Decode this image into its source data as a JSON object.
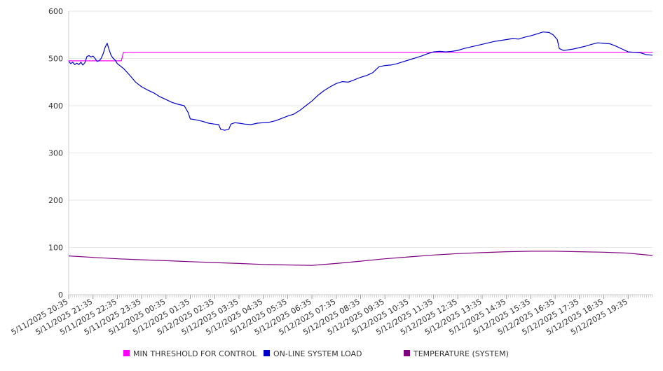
{
  "chart_data": {
    "type": "line",
    "title": "",
    "xlabel": "",
    "ylabel": "",
    "ylim": [
      0,
      600
    ],
    "yticks": [
      "0",
      "100",
      "200",
      "300",
      "400",
      "500",
      "600"
    ],
    "x_start": "5/11/2025 20:35",
    "x_end": "5/12/2025 20:35",
    "x_tick_labels": [
      "5/11/2025 20:35",
      "5/11/2025 21:35",
      "5/11/2025 22:35",
      "5/11/2025 23:35",
      "5/12/2025 00:35",
      "5/12/2025 01:35",
      "5/12/2025 02:35",
      "5/12/2025 03:35",
      "5/12/2025 04:35",
      "5/12/2025 05:35",
      "5/12/2025 06:35",
      "5/12/2025 07:35",
      "5/12/2025 08:35",
      "5/12/2025 09:35",
      "5/12/2025 10:35",
      "5/12/2025 11:35",
      "5/12/2025 12:35",
      "5/12/2025 13:35",
      "5/12/2025 14:35",
      "5/12/2025 15:35",
      "5/12/2025 16:35",
      "5/12/2025 17:35",
      "5/12/2025 18:35",
      "5/12/2025 19:35"
    ],
    "grid": true,
    "legend_position": "bottom",
    "series": [
      {
        "name": "MIN THRESHOLD FOR CONTROL",
        "color": "#ff00ff",
        "points": [
          [
            "5/11/2025 20:35",
            495
          ],
          [
            "5/11/2025 22:45",
            495
          ],
          [
            "5/11/2025 22:50",
            513
          ],
          [
            "5/12/2025 20:35",
            513
          ]
        ]
      },
      {
        "name": "ON-LINE SYSTEM LOAD",
        "color": "#0000cc",
        "points": [
          [
            "5/11/2025 20:35",
            494
          ],
          [
            "5/11/2025 20:40",
            489
          ],
          [
            "5/11/2025 20:45",
            492
          ],
          [
            "5/11/2025 20:50",
            487
          ],
          [
            "5/11/2025 20:55",
            490
          ],
          [
            "5/11/2025 21:00",
            487
          ],
          [
            "5/11/2025 21:05",
            492
          ],
          [
            "5/11/2025 21:10",
            486
          ],
          [
            "5/11/2025 21:15",
            491
          ],
          [
            "5/11/2025 21:20",
            504
          ],
          [
            "5/11/2025 21:25",
            506
          ],
          [
            "5/11/2025 21:30",
            503
          ],
          [
            "5/11/2025 21:35",
            505
          ],
          [
            "5/11/2025 21:40",
            500
          ],
          [
            "5/11/2025 21:45",
            494
          ],
          [
            "5/11/2025 21:50",
            495
          ],
          [
            "5/11/2025 21:55",
            500
          ],
          [
            "5/11/2025 22:00",
            510
          ],
          [
            "5/11/2025 22:05",
            524
          ],
          [
            "5/11/2025 22:10",
            532
          ],
          [
            "5/11/2025 22:15",
            518
          ],
          [
            "5/11/2025 22:20",
            506
          ],
          [
            "5/11/2025 22:25",
            500
          ],
          [
            "5/11/2025 22:30",
            496
          ],
          [
            "5/11/2025 22:35",
            489
          ],
          [
            "5/11/2025 22:50",
            479
          ],
          [
            "5/11/2025 23:05",
            465
          ],
          [
            "5/11/2025 23:20",
            450
          ],
          [
            "5/11/2025 23:35",
            440
          ],
          [
            "5/11/2025 23:50",
            433
          ],
          [
            "5/12/2025 00:05",
            427
          ],
          [
            "5/12/2025 00:20",
            419
          ],
          [
            "5/12/2025 00:35",
            413
          ],
          [
            "5/12/2025 00:50",
            407
          ],
          [
            "5/12/2025 01:05",
            403
          ],
          [
            "5/12/2025 01:20",
            400
          ],
          [
            "5/12/2025 01:30",
            385
          ],
          [
            "5/12/2025 01:35",
            372
          ],
          [
            "5/12/2025 01:50",
            370
          ],
          [
            "5/12/2025 02:05",
            367
          ],
          [
            "5/12/2025 02:20",
            363
          ],
          [
            "5/12/2025 02:35",
            361
          ],
          [
            "5/12/2025 02:45",
            360
          ],
          [
            "5/12/2025 02:50",
            350
          ],
          [
            "5/12/2025 03:00",
            348
          ],
          [
            "5/12/2025 03:10",
            350
          ],
          [
            "5/12/2025 03:15",
            361
          ],
          [
            "5/12/2025 03:25",
            364
          ],
          [
            "5/12/2025 03:35",
            363
          ],
          [
            "5/12/2025 03:50",
            361
          ],
          [
            "5/12/2025 04:05",
            360
          ],
          [
            "5/12/2025 04:20",
            363
          ],
          [
            "5/12/2025 04:35",
            364
          ],
          [
            "5/12/2025 04:50",
            365
          ],
          [
            "5/12/2025 05:05",
            368
          ],
          [
            "5/12/2025 05:20",
            373
          ],
          [
            "5/12/2025 05:35",
            378
          ],
          [
            "5/12/2025 05:50",
            382
          ],
          [
            "5/12/2025 06:05",
            390
          ],
          [
            "5/12/2025 06:20",
            400
          ],
          [
            "5/12/2025 06:35",
            410
          ],
          [
            "5/12/2025 06:50",
            422
          ],
          [
            "5/12/2025 07:05",
            432
          ],
          [
            "5/12/2025 07:20",
            440
          ],
          [
            "5/12/2025 07:35",
            447
          ],
          [
            "5/12/2025 07:50",
            451
          ],
          [
            "5/12/2025 08:05",
            450
          ],
          [
            "5/12/2025 08:20",
            455
          ],
          [
            "5/12/2025 08:35",
            460
          ],
          [
            "5/12/2025 08:50",
            464
          ],
          [
            "5/12/2025 09:05",
            470
          ],
          [
            "5/12/2025 09:20",
            482
          ],
          [
            "5/12/2025 09:35",
            485
          ],
          [
            "5/12/2025 09:50",
            486
          ],
          [
            "5/12/2025 10:05",
            489
          ],
          [
            "5/12/2025 10:20",
            493
          ],
          [
            "5/12/2025 10:35",
            497
          ],
          [
            "5/12/2025 10:50",
            501
          ],
          [
            "5/12/2025 11:05",
            505
          ],
          [
            "5/12/2025 11:20",
            510
          ],
          [
            "5/12/2025 11:35",
            514
          ],
          [
            "5/12/2025 11:50",
            515
          ],
          [
            "5/12/2025 12:05",
            514
          ],
          [
            "5/12/2025 12:20",
            515
          ],
          [
            "5/12/2025 12:35",
            517
          ],
          [
            "5/12/2025 12:50",
            521
          ],
          [
            "5/12/2025 13:05",
            524
          ],
          [
            "5/12/2025 13:20",
            527
          ],
          [
            "5/12/2025 13:35",
            530
          ],
          [
            "5/12/2025 13:50",
            533
          ],
          [
            "5/12/2025 14:05",
            536
          ],
          [
            "5/12/2025 14:20",
            538
          ],
          [
            "5/12/2025 14:35",
            540
          ],
          [
            "5/12/2025 14:50",
            542
          ],
          [
            "5/12/2025 15:05",
            541
          ],
          [
            "5/12/2025 15:20",
            545
          ],
          [
            "5/12/2025 15:35",
            548
          ],
          [
            "5/12/2025 15:50",
            552
          ],
          [
            "5/12/2025 16:05",
            556
          ],
          [
            "5/12/2025 16:20",
            555
          ],
          [
            "5/12/2025 16:30",
            550
          ],
          [
            "5/12/2025 16:40",
            540
          ],
          [
            "5/12/2025 16:45",
            521
          ],
          [
            "5/12/2025 16:55",
            517
          ],
          [
            "5/12/2025 17:05",
            518
          ],
          [
            "5/12/2025 17:20",
            520
          ],
          [
            "5/12/2025 17:35",
            523
          ],
          [
            "5/12/2025 17:50",
            526
          ],
          [
            "5/12/2025 18:05",
            530
          ],
          [
            "5/12/2025 18:20",
            533
          ],
          [
            "5/12/2025 18:35",
            532
          ],
          [
            "5/12/2025 18:50",
            531
          ],
          [
            "5/12/2025 19:05",
            526
          ],
          [
            "5/12/2025 19:20",
            520
          ],
          [
            "5/12/2025 19:35",
            514
          ],
          [
            "5/12/2025 19:50",
            513
          ],
          [
            "5/12/2025 20:05",
            512
          ],
          [
            "5/12/2025 20:20",
            508
          ],
          [
            "5/12/2025 20:35",
            507
          ]
        ]
      },
      {
        "name": "TEMPERATURE (SYSTEM)",
        "color": "#800080",
        "points": [
          [
            "5/11/2025 20:35",
            82
          ],
          [
            "5/11/2025 21:35",
            79
          ],
          [
            "5/11/2025 22:35",
            76
          ],
          [
            "5/11/2025 23:35",
            74
          ],
          [
            "5/12/2025 00:35",
            72
          ],
          [
            "5/12/2025 01:35",
            70
          ],
          [
            "5/12/2025 02:35",
            68
          ],
          [
            "5/12/2025 03:35",
            66
          ],
          [
            "5/12/2025 04:35",
            64
          ],
          [
            "5/12/2025 05:35",
            63
          ],
          [
            "5/12/2025 06:35",
            62
          ],
          [
            "5/12/2025 07:35",
            66
          ],
          [
            "5/12/2025 08:35",
            71
          ],
          [
            "5/12/2025 09:35",
            76
          ],
          [
            "5/12/2025 10:35",
            80
          ],
          [
            "5/12/2025 11:35",
            84
          ],
          [
            "5/12/2025 12:35",
            87
          ],
          [
            "5/12/2025 13:35",
            89
          ],
          [
            "5/12/2025 14:35",
            91
          ],
          [
            "5/12/2025 15:35",
            92
          ],
          [
            "5/12/2025 16:35",
            92
          ],
          [
            "5/12/2025 17:35",
            91
          ],
          [
            "5/12/2025 18:35",
            90
          ],
          [
            "5/12/2025 19:35",
            88
          ],
          [
            "5/12/2025 20:35",
            83
          ]
        ]
      }
    ]
  }
}
